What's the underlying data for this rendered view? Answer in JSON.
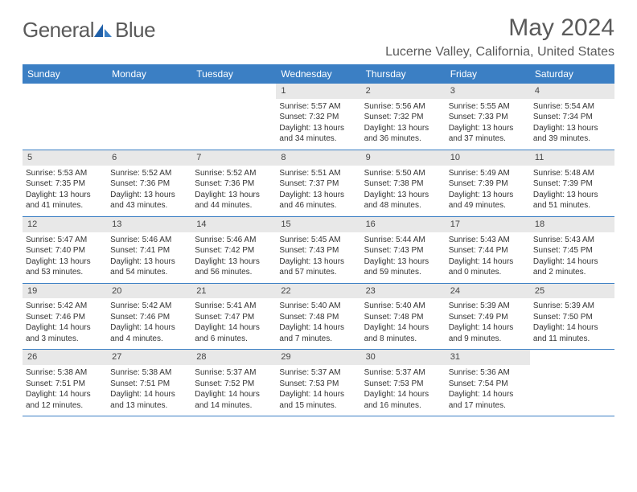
{
  "logo": {
    "part1": "General",
    "part2": "Blue"
  },
  "title": "May 2024",
  "location": "Lucerne Valley, California, United States",
  "colors": {
    "header_bg": "#3b7fc4",
    "header_text": "#ffffff",
    "daynum_bg": "#e8e8e8",
    "text": "#333333",
    "title_text": "#5a5a5a",
    "row_border": "#3b7fc4"
  },
  "day_names": [
    "Sunday",
    "Monday",
    "Tuesday",
    "Wednesday",
    "Thursday",
    "Friday",
    "Saturday"
  ],
  "weeks": [
    [
      {
        "day": "",
        "sunrise": "",
        "sunset": "",
        "daylight1": "",
        "daylight2": ""
      },
      {
        "day": "",
        "sunrise": "",
        "sunset": "",
        "daylight1": "",
        "daylight2": ""
      },
      {
        "day": "",
        "sunrise": "",
        "sunset": "",
        "daylight1": "",
        "daylight2": ""
      },
      {
        "day": "1",
        "sunrise": "Sunrise: 5:57 AM",
        "sunset": "Sunset: 7:32 PM",
        "daylight1": "Daylight: 13 hours",
        "daylight2": "and 34 minutes."
      },
      {
        "day": "2",
        "sunrise": "Sunrise: 5:56 AM",
        "sunset": "Sunset: 7:32 PM",
        "daylight1": "Daylight: 13 hours",
        "daylight2": "and 36 minutes."
      },
      {
        "day": "3",
        "sunrise": "Sunrise: 5:55 AM",
        "sunset": "Sunset: 7:33 PM",
        "daylight1": "Daylight: 13 hours",
        "daylight2": "and 37 minutes."
      },
      {
        "day": "4",
        "sunrise": "Sunrise: 5:54 AM",
        "sunset": "Sunset: 7:34 PM",
        "daylight1": "Daylight: 13 hours",
        "daylight2": "and 39 minutes."
      }
    ],
    [
      {
        "day": "5",
        "sunrise": "Sunrise: 5:53 AM",
        "sunset": "Sunset: 7:35 PM",
        "daylight1": "Daylight: 13 hours",
        "daylight2": "and 41 minutes."
      },
      {
        "day": "6",
        "sunrise": "Sunrise: 5:52 AM",
        "sunset": "Sunset: 7:36 PM",
        "daylight1": "Daylight: 13 hours",
        "daylight2": "and 43 minutes."
      },
      {
        "day": "7",
        "sunrise": "Sunrise: 5:52 AM",
        "sunset": "Sunset: 7:36 PM",
        "daylight1": "Daylight: 13 hours",
        "daylight2": "and 44 minutes."
      },
      {
        "day": "8",
        "sunrise": "Sunrise: 5:51 AM",
        "sunset": "Sunset: 7:37 PM",
        "daylight1": "Daylight: 13 hours",
        "daylight2": "and 46 minutes."
      },
      {
        "day": "9",
        "sunrise": "Sunrise: 5:50 AM",
        "sunset": "Sunset: 7:38 PM",
        "daylight1": "Daylight: 13 hours",
        "daylight2": "and 48 minutes."
      },
      {
        "day": "10",
        "sunrise": "Sunrise: 5:49 AM",
        "sunset": "Sunset: 7:39 PM",
        "daylight1": "Daylight: 13 hours",
        "daylight2": "and 49 minutes."
      },
      {
        "day": "11",
        "sunrise": "Sunrise: 5:48 AM",
        "sunset": "Sunset: 7:39 PM",
        "daylight1": "Daylight: 13 hours",
        "daylight2": "and 51 minutes."
      }
    ],
    [
      {
        "day": "12",
        "sunrise": "Sunrise: 5:47 AM",
        "sunset": "Sunset: 7:40 PM",
        "daylight1": "Daylight: 13 hours",
        "daylight2": "and 53 minutes."
      },
      {
        "day": "13",
        "sunrise": "Sunrise: 5:46 AM",
        "sunset": "Sunset: 7:41 PM",
        "daylight1": "Daylight: 13 hours",
        "daylight2": "and 54 minutes."
      },
      {
        "day": "14",
        "sunrise": "Sunrise: 5:46 AM",
        "sunset": "Sunset: 7:42 PM",
        "daylight1": "Daylight: 13 hours",
        "daylight2": "and 56 minutes."
      },
      {
        "day": "15",
        "sunrise": "Sunrise: 5:45 AM",
        "sunset": "Sunset: 7:43 PM",
        "daylight1": "Daylight: 13 hours",
        "daylight2": "and 57 minutes."
      },
      {
        "day": "16",
        "sunrise": "Sunrise: 5:44 AM",
        "sunset": "Sunset: 7:43 PM",
        "daylight1": "Daylight: 13 hours",
        "daylight2": "and 59 minutes."
      },
      {
        "day": "17",
        "sunrise": "Sunrise: 5:43 AM",
        "sunset": "Sunset: 7:44 PM",
        "daylight1": "Daylight: 14 hours",
        "daylight2": "and 0 minutes."
      },
      {
        "day": "18",
        "sunrise": "Sunrise: 5:43 AM",
        "sunset": "Sunset: 7:45 PM",
        "daylight1": "Daylight: 14 hours",
        "daylight2": "and 2 minutes."
      }
    ],
    [
      {
        "day": "19",
        "sunrise": "Sunrise: 5:42 AM",
        "sunset": "Sunset: 7:46 PM",
        "daylight1": "Daylight: 14 hours",
        "daylight2": "and 3 minutes."
      },
      {
        "day": "20",
        "sunrise": "Sunrise: 5:42 AM",
        "sunset": "Sunset: 7:46 PM",
        "daylight1": "Daylight: 14 hours",
        "daylight2": "and 4 minutes."
      },
      {
        "day": "21",
        "sunrise": "Sunrise: 5:41 AM",
        "sunset": "Sunset: 7:47 PM",
        "daylight1": "Daylight: 14 hours",
        "daylight2": "and 6 minutes."
      },
      {
        "day": "22",
        "sunrise": "Sunrise: 5:40 AM",
        "sunset": "Sunset: 7:48 PM",
        "daylight1": "Daylight: 14 hours",
        "daylight2": "and 7 minutes."
      },
      {
        "day": "23",
        "sunrise": "Sunrise: 5:40 AM",
        "sunset": "Sunset: 7:48 PM",
        "daylight1": "Daylight: 14 hours",
        "daylight2": "and 8 minutes."
      },
      {
        "day": "24",
        "sunrise": "Sunrise: 5:39 AM",
        "sunset": "Sunset: 7:49 PM",
        "daylight1": "Daylight: 14 hours",
        "daylight2": "and 9 minutes."
      },
      {
        "day": "25",
        "sunrise": "Sunrise: 5:39 AM",
        "sunset": "Sunset: 7:50 PM",
        "daylight1": "Daylight: 14 hours",
        "daylight2": "and 11 minutes."
      }
    ],
    [
      {
        "day": "26",
        "sunrise": "Sunrise: 5:38 AM",
        "sunset": "Sunset: 7:51 PM",
        "daylight1": "Daylight: 14 hours",
        "daylight2": "and 12 minutes."
      },
      {
        "day": "27",
        "sunrise": "Sunrise: 5:38 AM",
        "sunset": "Sunset: 7:51 PM",
        "daylight1": "Daylight: 14 hours",
        "daylight2": "and 13 minutes."
      },
      {
        "day": "28",
        "sunrise": "Sunrise: 5:37 AM",
        "sunset": "Sunset: 7:52 PM",
        "daylight1": "Daylight: 14 hours",
        "daylight2": "and 14 minutes."
      },
      {
        "day": "29",
        "sunrise": "Sunrise: 5:37 AM",
        "sunset": "Sunset: 7:53 PM",
        "daylight1": "Daylight: 14 hours",
        "daylight2": "and 15 minutes."
      },
      {
        "day": "30",
        "sunrise": "Sunrise: 5:37 AM",
        "sunset": "Sunset: 7:53 PM",
        "daylight1": "Daylight: 14 hours",
        "daylight2": "and 16 minutes."
      },
      {
        "day": "31",
        "sunrise": "Sunrise: 5:36 AM",
        "sunset": "Sunset: 7:54 PM",
        "daylight1": "Daylight: 14 hours",
        "daylight2": "and 17 minutes."
      },
      {
        "day": "",
        "sunrise": "",
        "sunset": "",
        "daylight1": "",
        "daylight2": ""
      }
    ]
  ]
}
